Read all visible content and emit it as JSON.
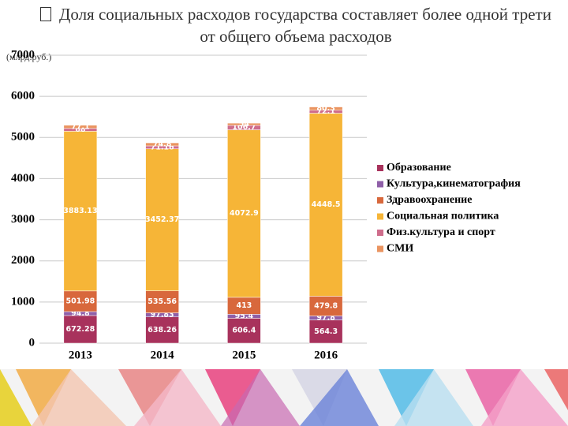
{
  "chart_data": {
    "type": "stacked-bar",
    "title": "Доля социальных расходов государства составляет более одной трети от общего объема расходов",
    "ylabel": "(млрд.руб.)",
    "categories": [
      "2013",
      "2014",
      "2015",
      "2016"
    ],
    "series": [
      {
        "name": "Образование",
        "color": "#a8325c",
        "values": [
          672.28,
          638.26,
          606.4,
          564.3
        ]
      },
      {
        "name": "Культура,кинематография",
        "color": "#8f5fa8",
        "values": [
          94.8,
          97.83,
          95.4,
          97.8
        ]
      },
      {
        "name": "Здравоохранение",
        "color": "#d8683c",
        "values": [
          501.98,
          535.56,
          413,
          479.8
        ]
      },
      {
        "name": "Социальная политика",
        "color": "#f6b537",
        "values": [
          3883.13,
          3452.37,
          4072.9,
          4448.5
        ]
      },
      {
        "name": "Физ.культура и спорт",
        "color": "#cf6d8c",
        "values": [
          68,
          71.16,
          106.7,
          72.1
        ]
      },
      {
        "name": "СМИ",
        "color": "#ea9460",
        "values": [
          77.1,
          74.8,
          54,
          80.3
        ]
      }
    ],
    "ylim": [
      0,
      7000
    ],
    "yticks": [
      0,
      1000,
      2000,
      3000,
      4000,
      5000,
      6000,
      7000
    ],
    "grid": true,
    "legend": "right"
  }
}
